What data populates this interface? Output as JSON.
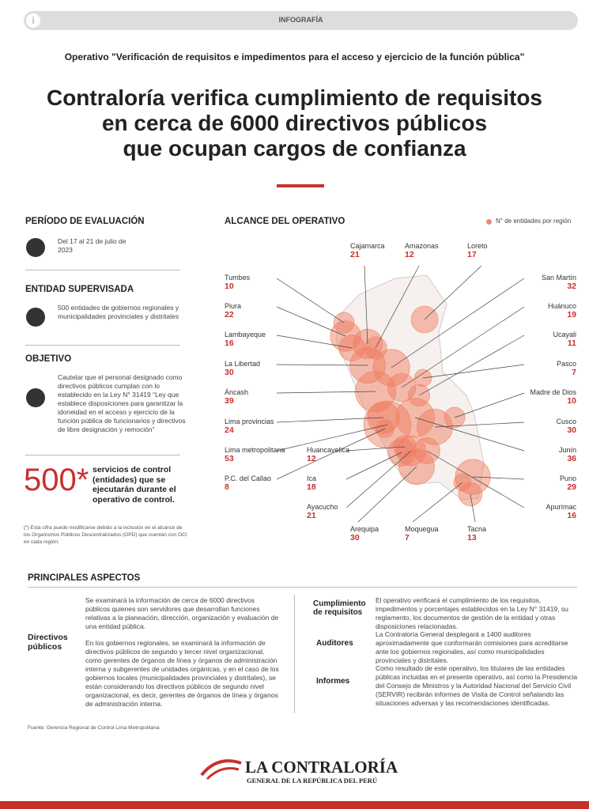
{
  "header": {
    "badge": "INFOGRAFÍA",
    "operativo": "Operativo \"Verificación de requisitos e impedimentos para el acceso y ejercicio de la función pública\"",
    "title_lines": [
      "Contraloría verifica cumplimiento de requisitos",
      "en cerca de 6000 directivos públicos",
      "que ocupan cargos de confianza"
    ]
  },
  "periodo": {
    "heading": "PERÍODO DE EVALUACIÓN",
    "text": "Del 17 al 21 de julio de 2023"
  },
  "entidad": {
    "heading": "ENTIDAD SUPERVISADA",
    "text": "500 entidades de gobiernos regionales y municipalidades provinciales y distritales"
  },
  "objetivo": {
    "heading": "OBJETIVO",
    "text": "Cautelar que el personal designado como directivos públicos cumplan con lo establecido en la Ley N° 31419 “Ley que establece disposiciones para garantizar la idoneidad en el acceso y ejercicio de la función pública de funcionarios y directivos de libre designación y remoción”"
  },
  "stat": {
    "number": "500*",
    "text": "servicios de control (entidades) que se ejecutarán durante el operativo de control.",
    "note": "(*) Esta cifra puede modificarse debido a la inclusión en el alcance de los Organismos Públicos Descentralizados (OPD) que cuentan con OCI en cada región."
  },
  "map": {
    "heading": "ALCANCE DEL OPERATIVO",
    "legend": "N° de entidades por región",
    "regions": [
      {
        "name": "Tumbes",
        "value": 10
      },
      {
        "name": "Piura",
        "value": 22
      },
      {
        "name": "Lambayeque",
        "value": 16
      },
      {
        "name": "La Libertad",
        "value": 30
      },
      {
        "name": "Áncash",
        "value": 39
      },
      {
        "name": "Lima provincias",
        "value": 24
      },
      {
        "name": "Lima metropolitana",
        "value": 53
      },
      {
        "name": "P.C. del Callao",
        "value": 8
      },
      {
        "name": "Cajamarca",
        "value": 21
      },
      {
        "name": "Amazonas",
        "value": 12
      },
      {
        "name": "Loreto",
        "value": 17
      },
      {
        "name": "San Martín",
        "value": 32
      },
      {
        "name": "Huánuco",
        "value": 19
      },
      {
        "name": "Ucayali",
        "value": 11
      },
      {
        "name": "Pasco",
        "value": 7
      },
      {
        "name": "Madre de Dios",
        "value": 10
      },
      {
        "name": "Cusco",
        "value": 30
      },
      {
        "name": "Junín",
        "value": 36
      },
      {
        "name": "Puno",
        "value": 29
      },
      {
        "name": "Apurímac",
        "value": 16
      },
      {
        "name": "Huancavelica",
        "value": 12
      },
      {
        "name": "Ica",
        "value": 18
      },
      {
        "name": "Ayacucho",
        "value": 21
      },
      {
        "name": "Arequipa",
        "value": 30
      },
      {
        "name": "Moquegua",
        "value": 7
      },
      {
        "name": "Tacna",
        "value": 13
      }
    ]
  },
  "aspectos": {
    "heading": "PRINCIPALES ASPECTOS",
    "left_label": "Directivos públicos",
    "left_paragraphs": [
      "Se examinará la información de cerca de 6000 directivos públicos quienes son servidores que desarrollan funciones relativas a la planeación, dirección, organización y evaluación de una entidad pública.",
      "En los gobiernos regionales, se examinará la información de directivos públicos de segundo y tercer nivel organizacional, como gerentes de órganos de línea y órganos de administración interna y subgerentes de unidades orgánicas, y en el caso de los gobiernos locales (municipalidades provinciales y distritales), se están considerando los directivos públicos de segundo nivel organizacional, es decir, gerentes de órganos de línea y órganos de administración interna."
    ],
    "items": [
      {
        "label": "Cumplimiento de requisitos",
        "text": "El operativo verificará el cumplimiento de los requisitos, impedimentos y porcentajes establecidos en la Ley N° 31419, su reglamento, los documentos de gestión de la entidad y otras disposiciones relacionadas."
      },
      {
        "label": "Auditores",
        "text": "La Contraloría General desplegará a 1400 auditores aproximadamente que conformarán comisiones para acreditarse ante los gobiernos regionales, así como municipalidades provinciales y distritales."
      },
      {
        "label": "Informes",
        "text": "Como resultado de este operativo, los titulares de las entidades públicas incluidas en el presente operativo, así como la Presidencia del Consejo de Ministros y la Autoridad Nacional del Servicio Civil (SERVIR) recibirán informes de Visita de Control señalando las situaciones adversas y las recomendaciones identificadas."
      }
    ]
  },
  "source": "Fuente: Gerencia Regional de Control Lima Metropolitana",
  "logo": {
    "name": "LA CONTRALORÍA",
    "subtitle": "GENERAL DE LA REPÚBLICA DEL PERÚ"
  }
}
